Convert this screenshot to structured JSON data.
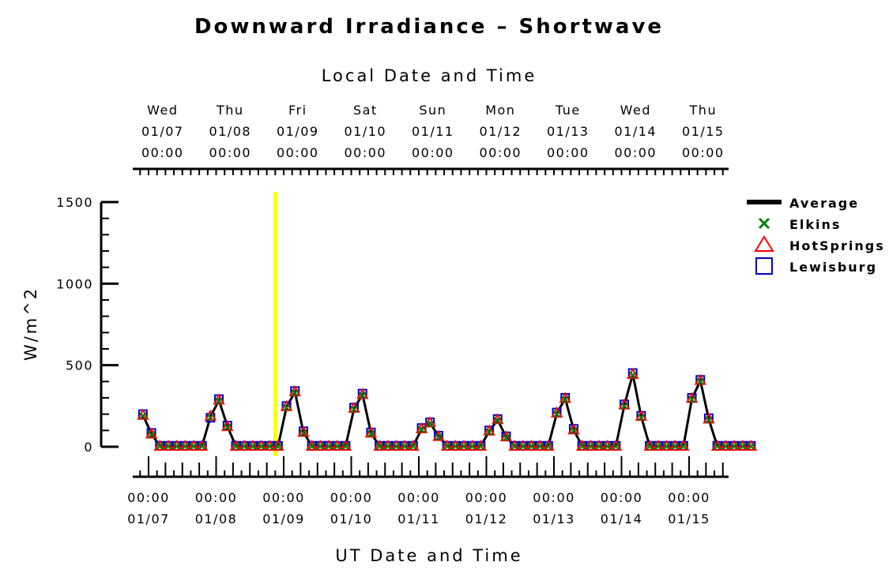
{
  "chart_data": {
    "type": "line",
    "title": "Downward Irradiance – Shortwave",
    "top_axis_label": "Local Date and Time",
    "xlabel": "UT Date and Time",
    "ylabel": "W/m^2",
    "ylim": [
      0,
      1500
    ],
    "yticks": [
      "0",
      "500",
      "1000",
      "1500"
    ],
    "bottom_ticks": [
      {
        "time": "00:00",
        "date": "01/07"
      },
      {
        "time": "00:00",
        "date": "01/08"
      },
      {
        "time": "00:00",
        "date": "01/09"
      },
      {
        "time": "00:00",
        "date": "01/10"
      },
      {
        "time": "00:00",
        "date": "01/11"
      },
      {
        "time": "00:00",
        "date": "01/12"
      },
      {
        "time": "00:00",
        "date": "01/13"
      },
      {
        "time": "00:00",
        "date": "01/14"
      },
      {
        "time": "00:00",
        "date": "01/15"
      }
    ],
    "top_ticks": [
      {
        "day": "Wed",
        "date": "01/07",
        "time": "00:00"
      },
      {
        "day": "Thu",
        "date": "01/08",
        "time": "00:00"
      },
      {
        "day": "Fri",
        "date": "01/09",
        "time": "00:00"
      },
      {
        "day": "Sat",
        "date": "01/10",
        "time": "00:00"
      },
      {
        "day": "Sun",
        "date": "01/11",
        "time": "00:00"
      },
      {
        "day": "Mon",
        "date": "01/12",
        "time": "00:00"
      },
      {
        "day": "Tue",
        "date": "01/13",
        "time": "00:00"
      },
      {
        "day": "Wed",
        "date": "01/14",
        "time": "00:00"
      },
      {
        "day": "Thu",
        "date": "01/15",
        "time": "00:00"
      }
    ],
    "marker_time_hours": 45,
    "legend": [
      {
        "name": "Average",
        "symbol": "line",
        "color": "#000000"
      },
      {
        "name": "Elkins",
        "symbol": "x",
        "color": "#008000"
      },
      {
        "name": "HotSprings",
        "symbol": "triangle",
        "color": "#ff0000"
      },
      {
        "name": "Lewisburg",
        "symbol": "square",
        "color": "#0000cc"
      }
    ],
    "x_hours": [
      -2,
      1,
      4,
      7,
      10,
      13,
      16,
      19,
      22,
      25,
      28,
      31,
      34,
      37,
      40,
      43,
      46,
      49,
      52,
      55,
      58,
      61,
      64,
      67,
      70,
      73,
      76,
      79,
      82,
      85,
      88,
      91,
      94,
      97,
      100,
      103,
      106,
      109,
      112,
      115,
      118,
      121,
      124,
      127,
      130,
      133,
      136,
      139,
      142,
      145,
      148,
      151,
      154,
      157,
      160,
      163,
      166,
      169,
      172,
      175,
      178,
      181,
      184,
      187,
      190,
      193,
      196,
      199,
      202,
      205,
      208,
      211,
      214
    ],
    "series": [
      {
        "name": "Average",
        "values": [
          195,
          80,
          5,
          5,
          5,
          5,
          5,
          5,
          185,
          285,
          125,
          5,
          5,
          5,
          5,
          5,
          5,
          245,
          335,
          90,
          5,
          5,
          5,
          5,
          5,
          235,
          320,
          85,
          5,
          5,
          5,
          5,
          5,
          110,
          145,
          65,
          5,
          5,
          5,
          5,
          5,
          95,
          165,
          60,
          5,
          5,
          5,
          5,
          5,
          205,
          295,
          105,
          5,
          5,
          5,
          5,
          5,
          255,
          445,
          185,
          5,
          5,
          5,
          5,
          5,
          295,
          405,
          170,
          5,
          5,
          5,
          5,
          5
        ]
      },
      {
        "name": "Elkins",
        "values": [
          190,
          75,
          3,
          3,
          3,
          3,
          3,
          3,
          180,
          280,
          120,
          3,
          3,
          3,
          3,
          3,
          3,
          240,
          330,
          85,
          3,
          3,
          3,
          3,
          3,
          230,
          315,
          80,
          3,
          3,
          3,
          3,
          3,
          105,
          140,
          60,
          3,
          3,
          3,
          3,
          3,
          90,
          160,
          55,
          3,
          3,
          3,
          3,
          3,
          200,
          290,
          100,
          3,
          3,
          3,
          3,
          3,
          250,
          440,
          180,
          3,
          3,
          3,
          3,
          3,
          290,
          400,
          165,
          3,
          3,
          3,
          3,
          3
        ]
      },
      {
        "name": "HotSprings",
        "values": [
          195,
          80,
          5,
          5,
          5,
          5,
          5,
          5,
          190,
          288,
          125,
          5,
          5,
          5,
          5,
          5,
          5,
          248,
          338,
          90,
          5,
          5,
          5,
          5,
          5,
          238,
          322,
          85,
          5,
          5,
          5,
          5,
          5,
          112,
          148,
          65,
          5,
          5,
          5,
          5,
          5,
          98,
          168,
          62,
          5,
          5,
          5,
          5,
          5,
          208,
          298,
          105,
          5,
          5,
          5,
          5,
          5,
          258,
          445,
          188,
          5,
          5,
          5,
          5,
          5,
          298,
          408,
          172,
          5,
          5,
          5,
          5,
          5
        ]
      },
      {
        "name": "Lewisburg",
        "values": [
          200,
          85,
          6,
          6,
          6,
          6,
          6,
          6,
          178,
          292,
          130,
          6,
          6,
          6,
          6,
          6,
          6,
          250,
          342,
          95,
          6,
          6,
          6,
          6,
          6,
          240,
          326,
          88,
          6,
          6,
          6,
          6,
          6,
          115,
          150,
          68,
          6,
          6,
          6,
          6,
          6,
          100,
          170,
          64,
          6,
          6,
          6,
          6,
          6,
          210,
          300,
          110,
          6,
          6,
          6,
          6,
          6,
          260,
          452,
          190,
          6,
          6,
          6,
          6,
          6,
          300,
          410,
          175,
          6,
          6,
          6,
          6,
          6
        ]
      }
    ]
  }
}
